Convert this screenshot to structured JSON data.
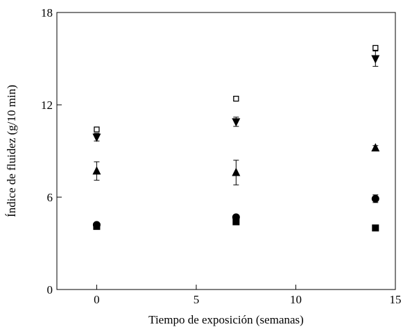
{
  "chart_data": {
    "type": "scatter",
    "title": "",
    "xlabel": "Tiempo de exposición (semanas)",
    "ylabel": "Índice de fluidez (g/10 min)",
    "xlim": [
      -2,
      15
    ],
    "ylim": [
      0,
      18
    ],
    "xticks": [
      0,
      5,
      10,
      15
    ],
    "yticks": [
      0,
      6,
      12,
      18
    ],
    "grid": false,
    "legend": "none",
    "color": "#000000",
    "series": [
      {
        "marker": "square-filled",
        "points": [
          {
            "x": 0,
            "y": 4.1,
            "err": 0.1
          },
          {
            "x": 7,
            "y": 4.4,
            "err": 0.1
          },
          {
            "x": 14,
            "y": 4.0,
            "err": 0.05
          }
        ]
      },
      {
        "marker": "circle-filled",
        "points": [
          {
            "x": 0,
            "y": 4.2,
            "err": 0.1
          },
          {
            "x": 7,
            "y": 4.7,
            "err": 0.1
          },
          {
            "x": 14,
            "y": 5.9,
            "err": 0.25
          }
        ]
      },
      {
        "marker": "triangle-up-filled",
        "points": [
          {
            "x": 0,
            "y": 7.7,
            "err": 0.6
          },
          {
            "x": 7,
            "y": 7.6,
            "err": 0.8
          },
          {
            "x": 14,
            "y": 9.2,
            "err": 0.15
          }
        ]
      },
      {
        "marker": "triangle-down-filled",
        "points": [
          {
            "x": 0,
            "y": 9.9,
            "err": 0.25
          },
          {
            "x": 7,
            "y": 10.9,
            "err": 0.3
          },
          {
            "x": 14,
            "y": 15.0,
            "err": 0.5
          }
        ]
      },
      {
        "marker": "square-open",
        "points": [
          {
            "x": 0,
            "y": 10.4,
            "err": 0.1
          },
          {
            "x": 7,
            "y": 12.4,
            "err": 0.1
          },
          {
            "x": 14,
            "y": 15.7,
            "err": 0.1
          }
        ]
      }
    ]
  }
}
